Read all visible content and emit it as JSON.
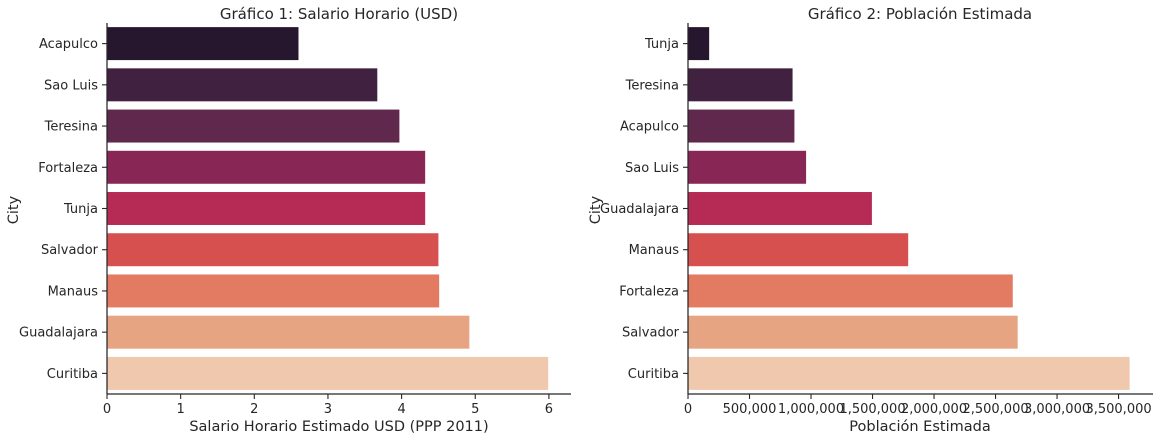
{
  "chart_data": [
    {
      "type": "bar",
      "orientation": "horizontal",
      "title": "Gráfico 1: Salario Horario (USD)",
      "xlabel": "Salario Horario Estimado USD (PPP 2011)",
      "ylabel": "City",
      "categories": [
        "Acapulco",
        "Sao Luis",
        "Teresina",
        "Fortaleza",
        "Tunja",
        "Salvador",
        "Manaus",
        "Guadalajara",
        "Curitiba"
      ],
      "values": [
        2.6,
        3.67,
        3.97,
        4.32,
        4.32,
        4.5,
        4.51,
        4.92,
        5.99
      ],
      "xlim": [
        0,
        6.3
      ],
      "xticks": [
        0,
        1,
        2,
        3,
        4,
        5,
        6
      ],
      "xtick_labels": [
        "0",
        "1",
        "2",
        "3",
        "4",
        "5",
        "6"
      ],
      "grid": false,
      "palette": "rocket",
      "colors": [
        "#26172f",
        "#40213f",
        "#61284d",
        "#882655",
        "#b52b55",
        "#d6504f",
        "#e27b62",
        "#e6a482",
        "#efc8ad"
      ]
    },
    {
      "type": "bar",
      "orientation": "horizontal",
      "title": "Gráfico 2: Población Estimada",
      "xlabel": "Población Estimada",
      "ylabel": "City",
      "categories": [
        "Tunja",
        "Teresina",
        "Acapulco",
        "Sao Luis",
        "Guadalajara",
        "Manaus",
        "Fortaleza",
        "Salvador",
        "Curitiba"
      ],
      "values": [
        172000,
        850000,
        865000,
        960000,
        1495000,
        1790000,
        2640000,
        2680000,
        3590000
      ],
      "xlim": [
        0,
        3780000
      ],
      "xticks": [
        0,
        500000,
        1000000,
        1500000,
        2000000,
        2500000,
        3000000,
        3500000
      ],
      "xtick_labels": [
        "0",
        "500,000",
        "1,000,000",
        "1,500,000",
        "2,000,000",
        "2,500,000",
        "3,000,000",
        "3,500,000"
      ],
      "grid": false,
      "palette": "rocket",
      "colors": [
        "#26172f",
        "#40213f",
        "#61284d",
        "#882655",
        "#b52b55",
        "#d6504f",
        "#e27b62",
        "#e6a482",
        "#efc8ad"
      ]
    }
  ]
}
